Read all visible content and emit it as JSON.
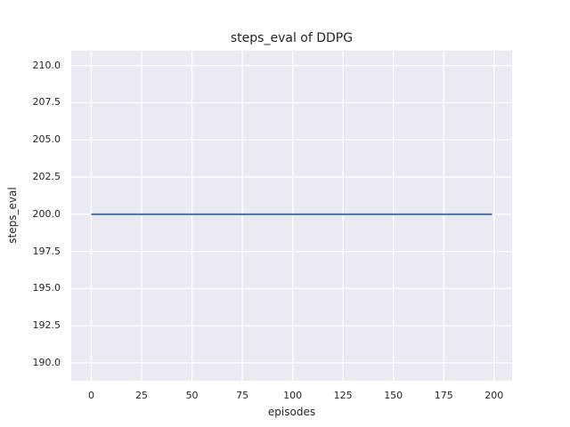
{
  "figure": {
    "background": "#ffffff"
  },
  "chart_data": {
    "type": "line",
    "title": "steps_eval of DDPG",
    "xlabel": "episodes",
    "ylabel": "steps_eval",
    "xlim": [
      -9.95,
      208.95
    ],
    "ylim": [
      188.8,
      211.0
    ],
    "xticks": {
      "values": [
        0,
        25,
        50,
        75,
        100,
        125,
        150,
        175,
        200
      ],
      "labels": [
        "0",
        "25",
        "50",
        "75",
        "100",
        "125",
        "150",
        "175",
        "200"
      ]
    },
    "yticks": {
      "values": [
        190.0,
        192.5,
        195.0,
        197.5,
        200.0,
        202.5,
        205.0,
        207.5,
        210.0
      ],
      "labels": [
        "190.0",
        "192.5",
        "195.0",
        "197.5",
        "200.0",
        "202.5",
        "205.0",
        "207.5",
        "210.0"
      ]
    },
    "grid": true,
    "legend_position": "none",
    "styles": {
      "plot_background": "#eaeaf2",
      "grid_color": "#ffffff",
      "text_color": "#262626",
      "line_color": "#4c72b0"
    },
    "series": [
      {
        "name": "steps_eval",
        "constant_value": 200.0,
        "x": [
          0,
          199
        ],
        "y": [
          200.0,
          200.0
        ]
      }
    ]
  }
}
